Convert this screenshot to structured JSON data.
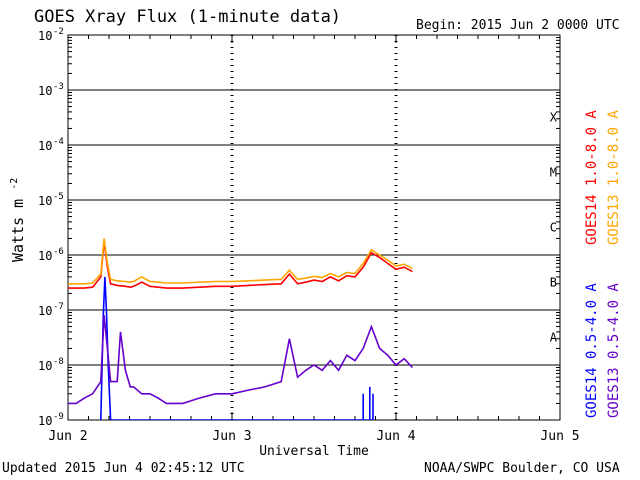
{
  "header": {
    "title": "GOES Xray Flux (1-minute data)",
    "begin": "Begin:  2015 Jun 2 0000 UTC"
  },
  "footer": {
    "updated": "Updated 2015 Jun  4 02:45:12 UTC",
    "credit": "NOAA/SWPC Boulder, CO USA"
  },
  "chart_data": {
    "type": "line",
    "title": "GOES Xray Flux (1-minute data)",
    "xlabel": "Universal Time",
    "ylabel": "Watts m-2",
    "ylabel_base": "Watts m",
    "ylabel_exp": "-2",
    "yscale": "log",
    "ylim": [
      1e-09,
      0.01
    ],
    "xlim_days": [
      0,
      3
    ],
    "x_tick_labels": [
      "Jun 2",
      "Jun 3",
      "Jun 4",
      "Jun 5"
    ],
    "y_ticks": [
      {
        "exp": "-2",
        "value": 0.01
      },
      {
        "exp": "-3",
        "value": 0.001
      },
      {
        "exp": "-4",
        "value": 0.0001
      },
      {
        "exp": "-5",
        "value": 1e-05
      },
      {
        "exp": "-6",
        "value": 1e-06
      },
      {
        "exp": "-7",
        "value": 1e-07
      },
      {
        "exp": "-8",
        "value": 1e-08
      },
      {
        "exp": "-9",
        "value": 1e-09
      }
    ],
    "flare_classes": [
      {
        "label": "X",
        "value": 0.000316
      },
      {
        "label": "M",
        "value": 3.16e-05
      },
      {
        "label": "C",
        "value": 3.16e-06
      },
      {
        "label": "B",
        "value": 3.16e-07
      },
      {
        "label": "A",
        "value": 3.16e-08
      }
    ],
    "grid": "horizontal at decades; dotted vertical at day boundaries",
    "series": [
      {
        "name": "GOES14 1.0-8.0 A",
        "color": "#ff0000",
        "x_days": [
          0,
          0.1,
          0.15,
          0.2,
          0.22,
          0.24,
          0.26,
          0.3,
          0.35,
          0.38,
          0.4,
          0.45,
          0.5,
          0.55,
          0.6,
          0.7,
          0.8,
          0.9,
          1.0,
          1.1,
          1.2,
          1.3,
          1.35,
          1.4,
          1.45,
          1.5,
          1.55,
          1.6,
          1.65,
          1.7,
          1.75,
          1.8,
          1.85,
          1.9,
          1.95,
          2.0,
          2.05,
          2.1
        ],
        "y": [
          2.5e-07,
          2.5e-07,
          2.6e-07,
          4e-07,
          1.8e-06,
          6e-07,
          3e-07,
          2.8e-07,
          2.7e-07,
          2.6e-07,
          2.7e-07,
          3.2e-07,
          2.7e-07,
          2.6e-07,
          2.5e-07,
          2.5e-07,
          2.6e-07,
          2.7e-07,
          2.7e-07,
          2.8e-07,
          2.9e-07,
          3e-07,
          4.5e-07,
          3e-07,
          3.2e-07,
          3.5e-07,
          3.3e-07,
          4e-07,
          3.4e-07,
          4.2e-07,
          4e-07,
          6e-07,
          1.1e-06,
          9e-07,
          7e-07,
          5.5e-07,
          6e-07,
          5e-07
        ]
      },
      {
        "name": "GOES13 1.0-8.0 A",
        "color": "#ffa500",
        "x_days": [
          0,
          0.1,
          0.15,
          0.2,
          0.22,
          0.24,
          0.26,
          0.3,
          0.35,
          0.38,
          0.4,
          0.45,
          0.5,
          0.55,
          0.6,
          0.7,
          0.8,
          0.9,
          1.0,
          1.1,
          1.2,
          1.3,
          1.35,
          1.4,
          1.45,
          1.5,
          1.55,
          1.6,
          1.65,
          1.7,
          1.75,
          1.8,
          1.85,
          1.9,
          1.95,
          2.0,
          2.05,
          2.1
        ],
        "y": [
          3e-07,
          3e-07,
          3.1e-07,
          4.5e-07,
          2e-06,
          7e-07,
          3.6e-07,
          3.4e-07,
          3.3e-07,
          3.2e-07,
          3.3e-07,
          4e-07,
          3.3e-07,
          3.2e-07,
          3.1e-07,
          3.1e-07,
          3.2e-07,
          3.3e-07,
          3.3e-07,
          3.4e-07,
          3.5e-07,
          3.6e-07,
          5.3e-07,
          3.6e-07,
          3.8e-07,
          4.1e-07,
          3.9e-07,
          4.6e-07,
          4e-07,
          4.8e-07,
          4.6e-07,
          7e-07,
          1.25e-06,
          1e-06,
          8e-07,
          6.3e-07,
          6.8e-07,
          5.7e-07
        ]
      },
      {
        "name": "GOES14 0.5-4.0 A",
        "color": "#0000ff",
        "x_days": [
          0.2,
          0.215,
          0.225,
          0.235,
          0.245,
          0.26,
          1.8,
          1.8,
          1.8,
          1.84,
          1.84,
          1.84,
          1.86,
          1.86,
          1.86
        ],
        "y": [
          1e-09,
          8e-08,
          4e-07,
          9e-08,
          1e-08,
          1e-09,
          1e-09,
          3e-09,
          1e-09,
          1e-09,
          4e-09,
          1e-09,
          1e-09,
          3e-09,
          1e-09
        ]
      },
      {
        "name": "GOES13 0.5-4.0 A",
        "color": "#6600cc",
        "x_days": [
          0,
          0.05,
          0.1,
          0.15,
          0.2,
          0.22,
          0.24,
          0.26,
          0.3,
          0.32,
          0.35,
          0.38,
          0.4,
          0.45,
          0.5,
          0.55,
          0.6,
          0.7,
          0.8,
          0.9,
          1.0,
          1.1,
          1.2,
          1.3,
          1.35,
          1.4,
          1.45,
          1.5,
          1.55,
          1.6,
          1.65,
          1.7,
          1.75,
          1.8,
          1.85,
          1.9,
          1.95,
          2.0,
          2.05,
          2.1
        ],
        "y": [
          2e-09,
          2e-09,
          2.5e-09,
          3e-09,
          5e-09,
          8e-08,
          2e-08,
          5e-09,
          5e-09,
          4e-08,
          8e-09,
          4e-09,
          4e-09,
          3e-09,
          3e-09,
          2.5e-09,
          2e-09,
          2e-09,
          2.5e-09,
          3e-09,
          3e-09,
          3.5e-09,
          4e-09,
          5e-09,
          3e-08,
          6e-09,
          8e-09,
          1e-08,
          8e-09,
          1.2e-08,
          8e-09,
          1.5e-08,
          1.2e-08,
          2e-08,
          5e-08,
          2e-08,
          1.5e-08,
          1e-08,
          1.3e-08,
          9e-09
        ]
      }
    ],
    "legend_placement": "right, vertical text"
  }
}
